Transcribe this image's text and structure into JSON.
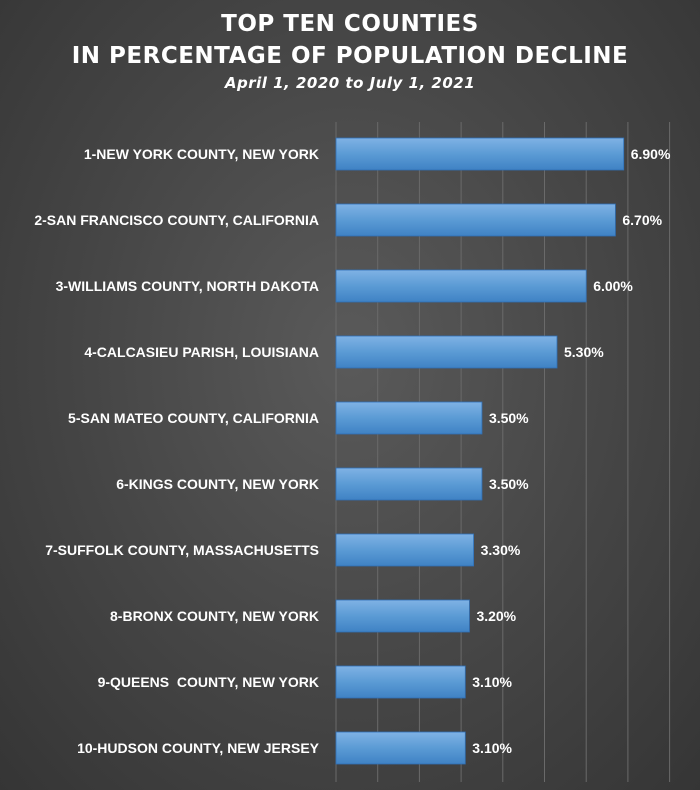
{
  "chart_data": {
    "type": "bar",
    "orientation": "horizontal",
    "title_lines": [
      "TOP TEN COUNTIES",
      "IN PERCENTAGE OF POPULATION DECLINE"
    ],
    "subtitle": "April 1, 2020 to July 1, 2021",
    "categories": [
      "1-NEW YORK COUNTY, NEW YORK",
      "2-SAN FRANCISCO COUNTY, CALIFORNIA",
      "3-WILLIAMS COUNTY, NORTH DAKOTA",
      "4-CALCASIEU PARISH, LOUISIANA",
      "5-SAN MATEO COUNTY, CALIFORNIA",
      "6-KINGS COUNTY, NEW YORK",
      "7-SUFFOLK COUNTY, MASSACHUSETTS",
      "8-BRONX COUNTY, NEW YORK",
      "9-QUEENS  COUNTY, NEW YORK",
      "10-HUDSON COUNTY, NEW JERSEY"
    ],
    "values": [
      6.9,
      6.7,
      6.0,
      5.3,
      3.5,
      3.5,
      3.3,
      3.2,
      3.1,
      3.1
    ],
    "value_labels": [
      "6.90%",
      "6.70%",
      "6.00%",
      "5.30%",
      "3.50%",
      "3.50%",
      "3.30%",
      "3.20%",
      "3.10%",
      "3.10%"
    ],
    "xlim": [
      0,
      8
    ],
    "grid": true,
    "bar_color": "#5b9bd5"
  }
}
